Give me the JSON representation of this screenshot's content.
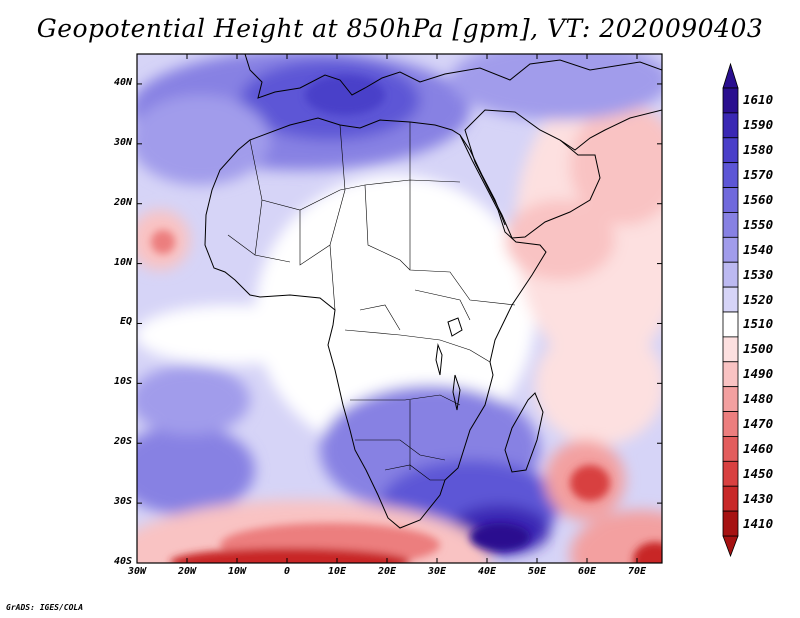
{
  "title": "Geopotential Height at 850hPa [gpm], VT: 2020090403",
  "credit": "GrADS: IGES/COLA",
  "map": {
    "lon_range": [
      -30,
      75
    ],
    "lat_range": [
      -40,
      45
    ],
    "lat_ticks": [
      "40N",
      "30N",
      "20N",
      "10N",
      "EQ",
      "10S",
      "20S",
      "30S",
      "40S"
    ],
    "lat_values": [
      40,
      30,
      20,
      10,
      0,
      -10,
      -20,
      -30,
      -40
    ],
    "lon_ticks": [
      "30W",
      "20W",
      "10W",
      "0",
      "10E",
      "20E",
      "30E",
      "40E",
      "50E",
      "60E",
      "70E"
    ],
    "lon_values": [
      -30,
      -20,
      -10,
      0,
      10,
      20,
      30,
      40,
      50,
      60,
      70
    ]
  },
  "colorbar": {
    "levels": [
      "1610",
      "1590",
      "1580",
      "1570",
      "1560",
      "1550",
      "1540",
      "1530",
      "1520",
      "1510",
      "1500",
      "1490",
      "1480",
      "1470",
      "1460",
      "1450",
      "1430",
      "1410"
    ],
    "colors": [
      "#2a0f8f",
      "#3a28b4",
      "#4a3fc9",
      "#5d56d6",
      "#7069dc",
      "#8781e3",
      "#a19ceb",
      "#bcb9f1",
      "#d6d4f7",
      "#ffffff",
      "#fde0e0",
      "#f9c3c3",
      "#f3a0a0",
      "#ec7e7e",
      "#e35d5d",
      "#d84040",
      "#c82828",
      "#a61212"
    ]
  },
  "field": {
    "background": "#d6d4f7",
    "regions": [
      {
        "name": "north-africa-mediterranean-high",
        "level": 1580
      },
      {
        "name": "south-africa-mozambique-channel-high",
        "level": 1590
      },
      {
        "name": "south-atlantic-high",
        "level": 1560
      },
      {
        "name": "arabian-sea-low",
        "level": 1490
      },
      {
        "name": "mascarene-low",
        "level": 1450
      },
      {
        "name": "cape-verde-low",
        "level": 1490
      },
      {
        "name": "southern-ocean-trough",
        "level": 1430
      }
    ]
  }
}
